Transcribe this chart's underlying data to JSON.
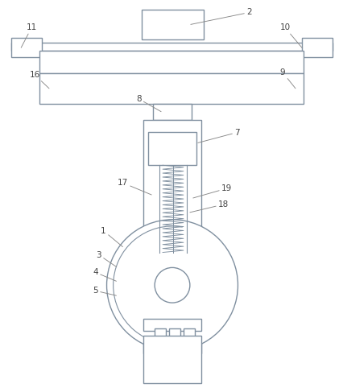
{
  "background_color": "#ffffff",
  "line_color": "#8090a0",
  "line_width": 1.0,
  "fig_width": 4.27,
  "fig_height": 4.82
}
